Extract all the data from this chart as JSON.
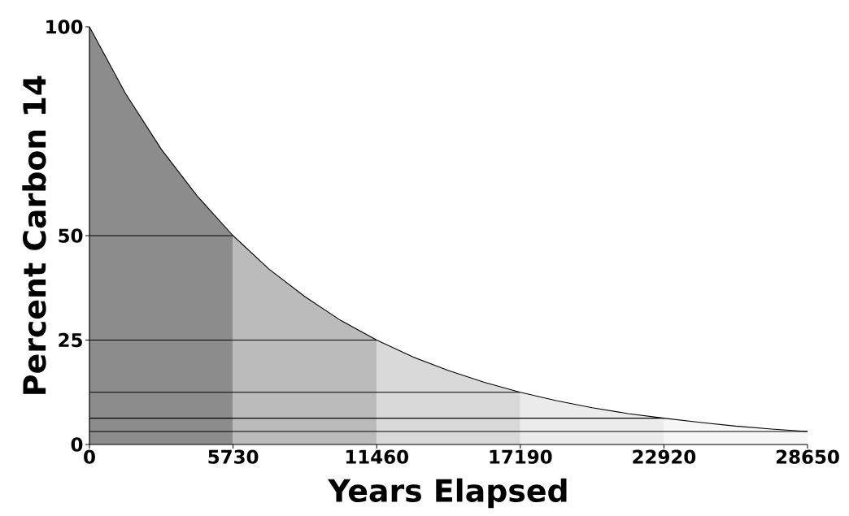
{
  "chart_data": {
    "type": "area",
    "xlabel": "Years Elapsed",
    "ylabel": "Percent Carbon 14",
    "xlim": [
      0,
      28650
    ],
    "ylim": [
      0,
      100
    ],
    "xticks": [
      0,
      5730,
      11460,
      17190,
      22920,
      28650
    ],
    "yticks": [
      0,
      25,
      50,
      100
    ],
    "series": [
      {
        "color": "#8c8c8c",
        "x": [
          0,
          1432.5,
          2865,
          4297.5,
          5730
        ],
        "values": [
          100,
          84.1,
          70.7,
          59.5,
          50
        ]
      },
      {
        "color": "#bbbbbb",
        "x": [
          5730,
          7162.5,
          8595,
          10027.5,
          11460
        ],
        "values": [
          50,
          42,
          35.4,
          29.7,
          25
        ]
      },
      {
        "color": "#d9d9d9",
        "x": [
          11460,
          12892.5,
          14325,
          15757.5,
          17190
        ],
        "values": [
          25,
          21,
          17.7,
          14.9,
          12.5
        ]
      },
      {
        "color": "#ececec",
        "x": [
          17190,
          18622.5,
          20055,
          21487.5,
          22920
        ],
        "values": [
          12.5,
          10.5,
          8.8,
          7.4,
          6.3
        ]
      },
      {
        "color": "#f7f7f7",
        "x": [
          22920,
          24352.5,
          25785,
          27217.5,
          28650
        ],
        "values": [
          6.3,
          5.3,
          4.4,
          3.7,
          3.1
        ]
      },
      {
        "type": "line",
        "color": "#000000",
        "x": [
          0,
          1432.5,
          2865,
          4297.5,
          5730,
          7162.5,
          8595,
          10027.5,
          11460,
          12892.5,
          14325,
          15757.5,
          17190,
          18622.5,
          20055,
          21487.5,
          22920,
          24352.5,
          25785,
          27217.5,
          28650
        ],
        "values": [
          100,
          84.1,
          70.7,
          59.5,
          50,
          42,
          35.4,
          29.7,
          25,
          21,
          17.7,
          14.9,
          12.5,
          10.5,
          8.8,
          7.4,
          6.3,
          5.3,
          4.4,
          3.7,
          3.1
        ]
      },
      {
        "type": "line",
        "color": "#000000",
        "x": [
          0,
          5730
        ],
        "values": [
          50,
          50
        ]
      },
      {
        "type": "line",
        "color": "#000000",
        "x": [
          0,
          11460
        ],
        "values": [
          25,
          25
        ]
      },
      {
        "type": "line",
        "color": "#000000",
        "x": [
          0,
          17190
        ],
        "values": [
          12.5,
          12.5
        ]
      },
      {
        "type": "line",
        "color": "#000000",
        "x": [
          0,
          22920
        ],
        "values": [
          6.3,
          6.3
        ]
      },
      {
        "type": "line",
        "color": "#000000",
        "x": [
          0,
          28650
        ],
        "values": [
          3.1,
          3.1
        ]
      }
    ]
  }
}
